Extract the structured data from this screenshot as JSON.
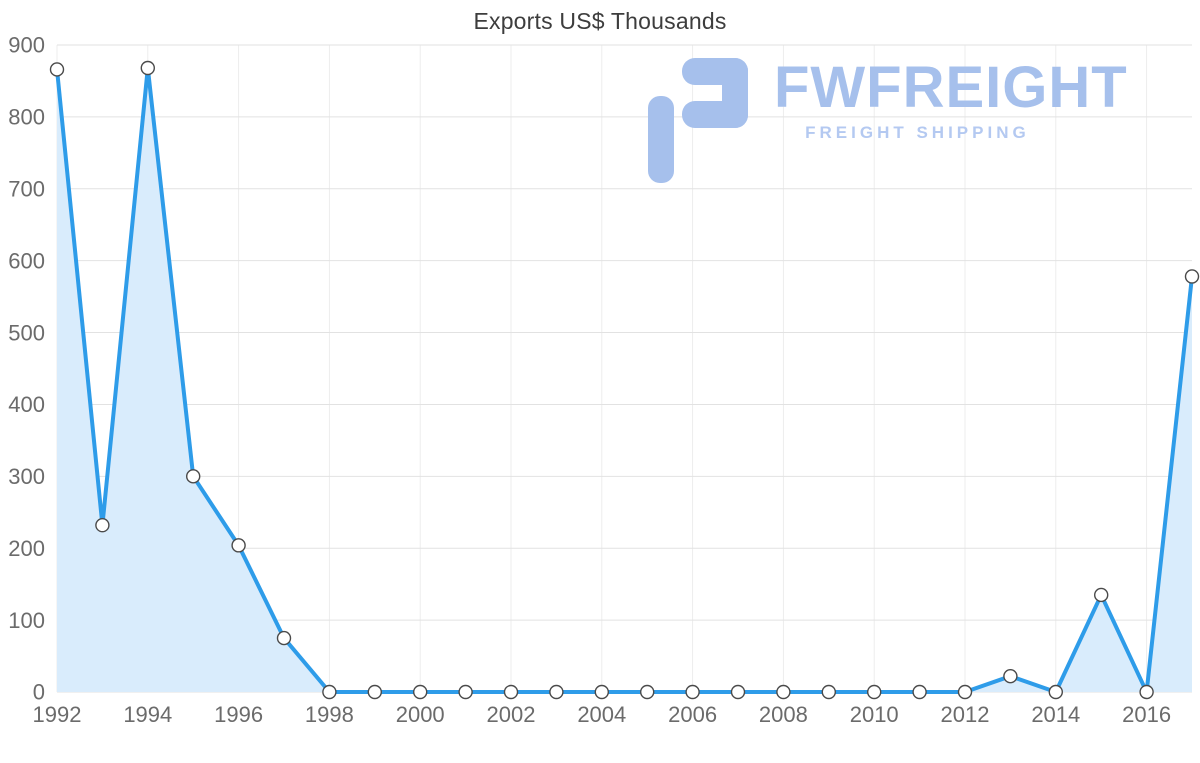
{
  "title": "Exports US$ Thousands",
  "watermark": {
    "brand": "FWFREIGHT",
    "tagline": "FREIGHT SHIPPING",
    "color": "#a6c0ec"
  },
  "chart_data": {
    "type": "area",
    "title": "Exports US$ Thousands",
    "xlabel": "",
    "ylabel": "",
    "x": [
      1992,
      1993,
      1994,
      1995,
      1996,
      1997,
      1998,
      1999,
      2000,
      2001,
      2002,
      2003,
      2004,
      2005,
      2006,
      2007,
      2008,
      2009,
      2010,
      2011,
      2012,
      2013,
      2014,
      2015,
      2016,
      2017
    ],
    "values": [
      866,
      232,
      868,
      300,
      204,
      75,
      0,
      0,
      0,
      0,
      0,
      0,
      0,
      0,
      0,
      0,
      0,
      0,
      0,
      0,
      0,
      22,
      0,
      135,
      0,
      578
    ],
    "ylim": [
      0,
      900
    ],
    "y_ticks": [
      0,
      100,
      200,
      300,
      400,
      500,
      600,
      700,
      800,
      900
    ],
    "x_tick_years": [
      1992,
      1994,
      1996,
      1998,
      2000,
      2002,
      2004,
      2006,
      2008,
      2010,
      2012,
      2014,
      2016
    ],
    "grid": true,
    "legend": "none",
    "line_color": "#2e9ce9",
    "fill_color": "#d9ecfc",
    "marker_fill": "#ffffff",
    "marker_stroke": "#4a4a4a",
    "grid_color_h": "#e2e2e2",
    "grid_color_v": "#ededed"
  }
}
